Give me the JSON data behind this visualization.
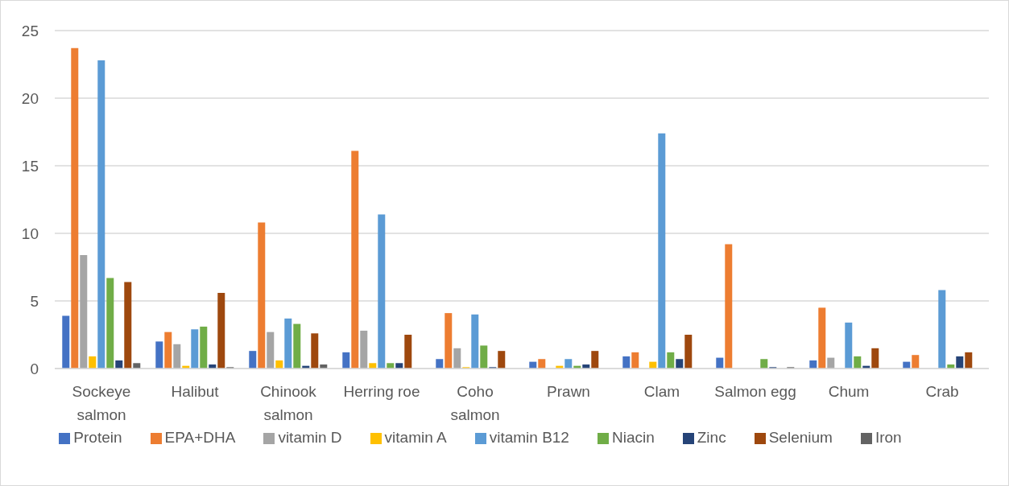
{
  "chart_data": {
    "type": "bar",
    "categories": [
      "Sockeye salmon",
      "Halibut",
      "Chinook salmon",
      "Herring roe",
      "Coho salmon",
      "Prawn",
      "Clam",
      "Salmon egg",
      "Chum",
      "Crab"
    ],
    "series": [
      {
        "name": "Protein",
        "color": "#4472c4",
        "values": [
          3.9,
          2.0,
          1.3,
          1.2,
          0.7,
          0.5,
          0.9,
          0.8,
          0.6,
          0.5
        ]
      },
      {
        "name": "EPA+DHA",
        "color": "#ed7d31",
        "values": [
          23.7,
          2.7,
          10.8,
          16.1,
          4.1,
          0.7,
          1.2,
          9.2,
          4.5,
          1.0
        ]
      },
      {
        "name": "vitamin D",
        "color": "#a5a5a5",
        "values": [
          8.4,
          1.8,
          2.7,
          2.8,
          1.5,
          0,
          0,
          0,
          0.8,
          0
        ]
      },
      {
        "name": "vitamin A",
        "color": "#ffc000",
        "values": [
          0.9,
          0.2,
          0.6,
          0.4,
          0.1,
          0.2,
          0.5,
          0,
          0,
          0
        ]
      },
      {
        "name": "vitamin B12",
        "color": "#5b9bd5",
        "values": [
          22.8,
          2.9,
          3.7,
          11.4,
          4.0,
          0.7,
          17.4,
          0,
          3.4,
          5.8
        ]
      },
      {
        "name": "Niacin",
        "color": "#70ad47",
        "values": [
          6.7,
          3.1,
          3.3,
          0.4,
          1.7,
          0.2,
          1.2,
          0.7,
          0.9,
          0.3
        ]
      },
      {
        "name": "Zinc",
        "color": "#264478",
        "values": [
          0.6,
          0.3,
          0.2,
          0.4,
          0.1,
          0.3,
          0.7,
          0.1,
          0.2,
          0.9
        ]
      },
      {
        "name": "Selenium",
        "color": "#9e480e",
        "values": [
          6.4,
          5.6,
          2.6,
          2.5,
          1.3,
          1.3,
          2.5,
          0,
          1.5,
          1.2
        ]
      },
      {
        "name": "Iron",
        "color": "#636363",
        "values": [
          0.4,
          0.1,
          0.3,
          0,
          0,
          0,
          0,
          0.1,
          0,
          0
        ]
      }
    ],
    "ylim": [
      0,
      25
    ],
    "yticks": [
      0,
      5,
      10,
      15,
      20,
      25
    ],
    "grid": "y",
    "legend": "bottom"
  }
}
